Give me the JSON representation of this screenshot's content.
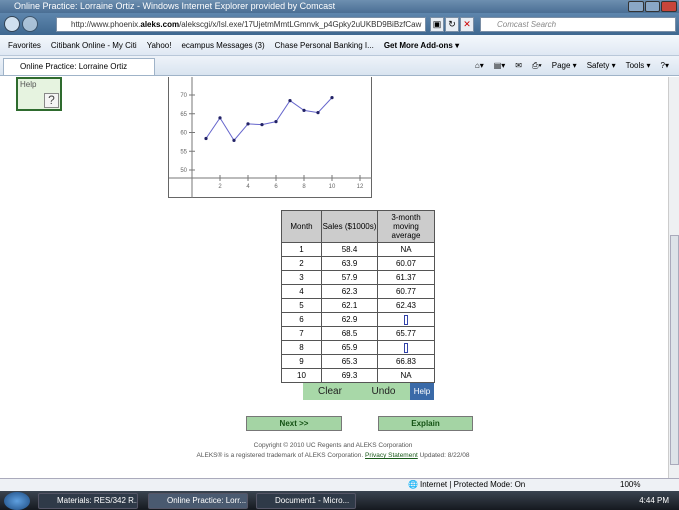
{
  "window": {
    "title": "Online Practice: Lorraine Ortiz - Windows Internet Explorer provided by Comcast"
  },
  "address": {
    "prefix": "http://www.phoenix.",
    "domain": "aleks.com",
    "path": "/alekscgi/x/Isl.exe/17UjetmMmtLGmnvk_p4Gpky2uUKBD9BiBzfCaw"
  },
  "search": {
    "placeholder": "Comcast Search"
  },
  "favorites": [
    "Favorites",
    "Citibank Online - My Citi",
    "Yahoo!",
    "ecampus Messages (3)",
    "Chase Personal Banking I...",
    "Get More Add-ons ▾"
  ],
  "tab": {
    "label": "Online Practice: Lorraine Ortiz"
  },
  "toolbar": [
    "Page ▾",
    "Safety ▾",
    "Tools ▾",
    "?▾"
  ],
  "help": {
    "label": "Help",
    "icon": "?"
  },
  "chart_data": {
    "type": "line",
    "x": [
      1,
      2,
      3,
      4,
      5,
      6,
      7,
      8,
      9,
      10
    ],
    "y": [
      58.4,
      63.9,
      57.9,
      62.3,
      62.1,
      62.9,
      68.5,
      65.9,
      65.3,
      69.3
    ],
    "xticks": [
      2,
      4,
      6,
      8,
      10,
      12
    ],
    "yticks": [
      50,
      55,
      60,
      65,
      70
    ],
    "xlim": [
      0,
      12.5
    ],
    "ylim": [
      48,
      72
    ],
    "color": "#6666cc",
    "grid": false
  },
  "table": {
    "headers": [
      "Month",
      "Sales ($1000s)",
      "3-month moving average"
    ],
    "rows": [
      [
        "1",
        "58.4",
        "NA"
      ],
      [
        "2",
        "63.9",
        "60.07"
      ],
      [
        "3",
        "57.9",
        "61.37"
      ],
      [
        "4",
        "62.3",
        "60.77"
      ],
      [
        "5",
        "62.1",
        "62.43"
      ],
      [
        "6",
        "62.9",
        ""
      ],
      [
        "7",
        "68.5",
        "65.77"
      ],
      [
        "8",
        "65.9",
        ""
      ],
      [
        "9",
        "65.3",
        "66.83"
      ],
      [
        "10",
        "69.3",
        "NA"
      ]
    ]
  },
  "buttons": {
    "clear": "Clear",
    "undo": "Undo",
    "help": "Help",
    "next": "Next >>",
    "explain": "Explain"
  },
  "footer": {
    "copyright": "Copyright © 2010 UC Regents and ALEKS Corporation",
    "trademark": "ALEKS® is a registered trademark of ALEKS Corporation.",
    "privacy": "Privacy Statement",
    "updated": "Updated: 8/22/08"
  },
  "status": {
    "zone": "Internet | Protected Mode: On",
    "zoom": "100%"
  },
  "taskbar": {
    "items": [
      "Materials: RES/342 R...",
      "Online Practice: Lorr...",
      "Document1 - Micro..."
    ],
    "clock": "4:44 PM"
  }
}
